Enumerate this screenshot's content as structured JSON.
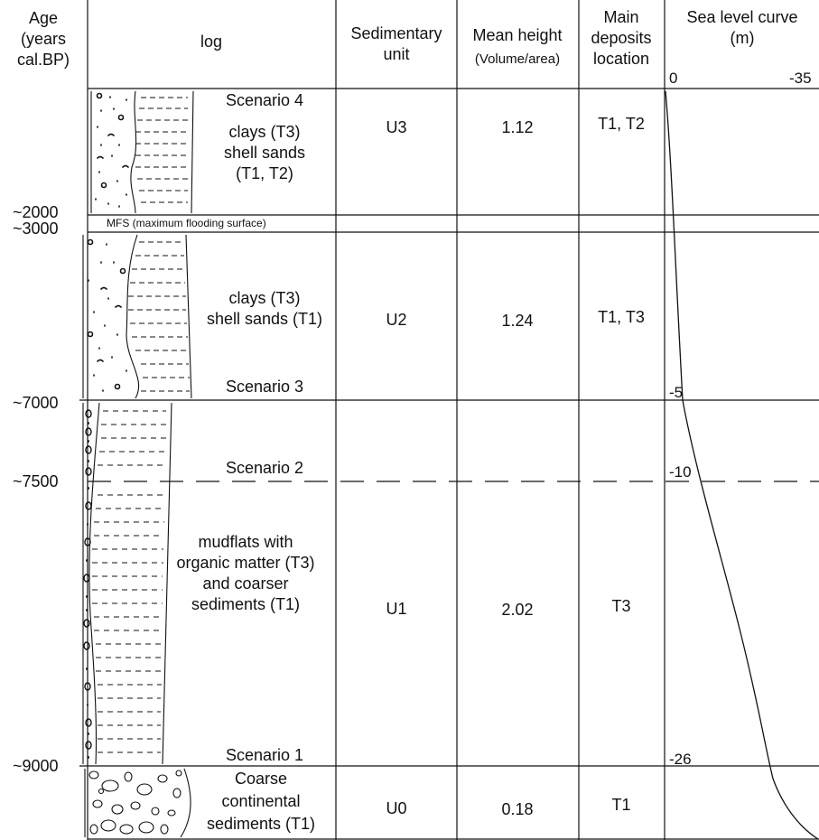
{
  "headers": {
    "age": [
      "Age",
      "(years",
      "cal.BP)"
    ],
    "log": "log",
    "unit": [
      "Sedimentary",
      "unit"
    ],
    "mean": [
      "Mean height",
      "(Volume/area)"
    ],
    "deposits": [
      "Main",
      "deposits",
      "location"
    ],
    "sea": [
      "Sea level curve",
      "(m)"
    ],
    "sea_axis": [
      "0",
      "-35"
    ]
  },
  "ages": [
    "~2000",
    "~3000",
    "~7000",
    "~7500",
    "~9000"
  ],
  "scenarios": [
    "Scenario 4",
    "Scenario 3",
    "Scenario 2",
    "Scenario 1"
  ],
  "mfs": "MFS (maximum flooding surface)",
  "rows": [
    {
      "desc": [
        "clays (T3)",
        "shell sands",
        "(T1, T2)"
      ],
      "unit": "U3",
      "mean": "1.12",
      "deposits": "T1, T2"
    },
    {
      "desc": [
        "clays (T3)",
        "shell sands (T1)"
      ],
      "unit": "U2",
      "mean": "1.24",
      "deposits": "T1, T3"
    },
    {
      "desc": [
        "mudflats with",
        "organic matter (T3)",
        "and coarser",
        "sediments (T1)"
      ],
      "unit": "U1",
      "mean": "2.02",
      "deposits": "T3"
    },
    {
      "desc": [
        "Coarse",
        "continental",
        "sediments (T1)"
      ],
      "unit": "U0",
      "mean": "0.18",
      "deposits": "T1"
    }
  ],
  "sea_levels": [
    "-5",
    "-10",
    "-26"
  ]
}
